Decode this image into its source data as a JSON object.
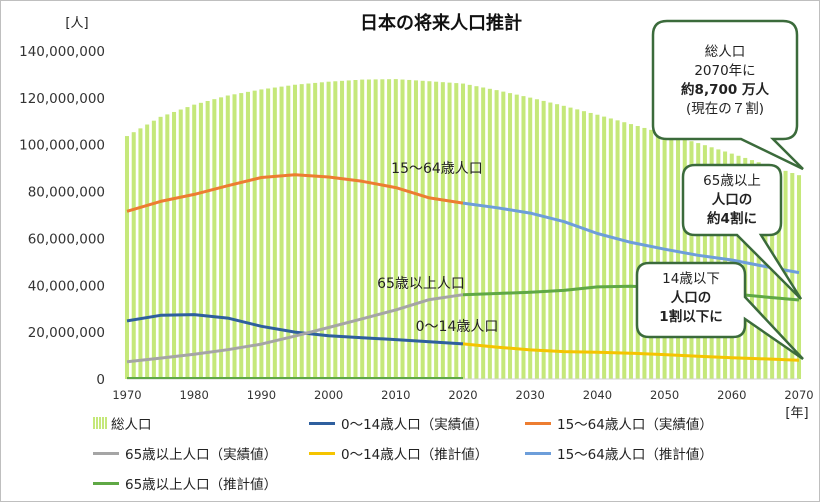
{
  "chart_data": {
    "type": "bar+line",
    "title": "日本の将来人口推計",
    "y_unit": "[人]",
    "x_unit": "[年]",
    "ylim": [
      0,
      140000000
    ],
    "y_ticks": [
      "0",
      "20,000,000",
      "40,000,000",
      "60,000,000",
      "80,000,000",
      "100,000,000",
      "120,000,000",
      "140,000,000"
    ],
    "x_ticks": [
      "1970",
      "1980",
      "1990",
      "2000",
      "2010",
      "2020",
      "2030",
      "2040",
      "2050",
      "2060",
      "2070"
    ],
    "series": [
      {
        "name": "総人口",
        "kind": "bar",
        "color": "#c5e87a",
        "points": [
          [
            1970,
            103700000
          ],
          [
            1975,
            111900000
          ],
          [
            1980,
            117100000
          ],
          [
            1985,
            121000000
          ],
          [
            1990,
            123600000
          ],
          [
            1995,
            125600000
          ],
          [
            2000,
            126900000
          ],
          [
            2005,
            127800000
          ],
          [
            2010,
            128000000
          ],
          [
            2015,
            127100000
          ],
          [
            2020,
            126100000
          ],
          [
            2025,
            123300000
          ],
          [
            2030,
            120100000
          ],
          [
            2035,
            116600000
          ],
          [
            2040,
            112800000
          ],
          [
            2045,
            108800000
          ],
          [
            2050,
            104700000
          ],
          [
            2055,
            100700000
          ],
          [
            2060,
            96200000
          ],
          [
            2065,
            91600000
          ],
          [
            2070,
            87000000
          ]
        ]
      },
      {
        "name": "0～14歳人口（実績値）",
        "kind": "line",
        "color": "#2e5f9e",
        "points": [
          [
            1970,
            24800000
          ],
          [
            1975,
            27200000
          ],
          [
            1980,
            27500000
          ],
          [
            1985,
            26000000
          ],
          [
            1990,
            22500000
          ],
          [
            1995,
            20000000
          ],
          [
            2000,
            18500000
          ],
          [
            2005,
            17600000
          ],
          [
            2010,
            16800000
          ],
          [
            2015,
            15900000
          ],
          [
            2020,
            15000000
          ]
        ]
      },
      {
        "name": "15～64歳人口（実績値）",
        "kind": "line",
        "color": "#ed7d31",
        "points": [
          [
            1970,
            71600000
          ],
          [
            1975,
            75800000
          ],
          [
            1980,
            78800000
          ],
          [
            1985,
            82500000
          ],
          [
            1990,
            86000000
          ],
          [
            1995,
            87200000
          ],
          [
            2000,
            86200000
          ],
          [
            2005,
            84400000
          ],
          [
            2010,
            81700000
          ],
          [
            2015,
            77300000
          ],
          [
            2020,
            75100000
          ]
        ]
      },
      {
        "name": "65歳以上人口（実績値）",
        "kind": "line",
        "color": "#a5a5a5",
        "points": [
          [
            1970,
            7400000
          ],
          [
            1975,
            8900000
          ],
          [
            1980,
            10600000
          ],
          [
            1985,
            12500000
          ],
          [
            1990,
            14900000
          ],
          [
            1995,
            18300000
          ],
          [
            2000,
            22000000
          ],
          [
            2005,
            25700000
          ],
          [
            2010,
            29500000
          ],
          [
            2015,
            33900000
          ],
          [
            2020,
            36000000
          ]
        ]
      },
      {
        "name": "0～14歳人口（推計値）",
        "kind": "line",
        "color": "#f5c400",
        "points": [
          [
            2020,
            15000000
          ],
          [
            2025,
            13600000
          ],
          [
            2030,
            12400000
          ],
          [
            2035,
            11700000
          ],
          [
            2040,
            11400000
          ],
          [
            2045,
            11000000
          ],
          [
            2050,
            10400000
          ],
          [
            2055,
            9700000
          ],
          [
            2060,
            9100000
          ],
          [
            2065,
            8600000
          ],
          [
            2070,
            8000000
          ]
        ]
      },
      {
        "name": "15～64歳人口（推計値）",
        "kind": "line",
        "color": "#6d9eda",
        "points": [
          [
            2020,
            75100000
          ],
          [
            2025,
            73100000
          ],
          [
            2030,
            70800000
          ],
          [
            2035,
            67200000
          ],
          [
            2040,
            62100000
          ],
          [
            2045,
            58300000
          ],
          [
            2050,
            55400000
          ],
          [
            2055,
            52800000
          ],
          [
            2060,
            50800000
          ],
          [
            2065,
            48000000
          ],
          [
            2070,
            45400000
          ]
        ]
      },
      {
        "name": "65歳以上人口（推計値）",
        "kind": "line",
        "color": "#5fa845",
        "points": [
          [
            2020,
            36000000
          ],
          [
            2025,
            36500000
          ],
          [
            2030,
            37000000
          ],
          [
            2035,
            37800000
          ],
          [
            2040,
            39300000
          ],
          [
            2045,
            39600000
          ],
          [
            2050,
            38900000
          ],
          [
            2055,
            37800000
          ],
          [
            2060,
            36400000
          ],
          [
            2065,
            35000000
          ],
          [
            2070,
            33700000
          ]
        ]
      }
    ],
    "annotations": [
      {
        "text": "15～64歳人口"
      },
      {
        "text": "65歳以上人口"
      },
      {
        "text": "0～14歳人口"
      }
    ],
    "callouts": [
      {
        "lines": [
          {
            "t": "総人口",
            "bold": false
          },
          {
            "t": "2070年に",
            "bold": false
          },
          {
            "t": "約8,700 万人",
            "bold": true
          },
          {
            "t": "(現在の７割)",
            "bold": false
          }
        ]
      },
      {
        "lines": [
          {
            "t": "65歳以上",
            "bold": false
          },
          {
            "t": "人口の",
            "bold": true
          },
          {
            "t": "約4割に",
            "bold": true
          }
        ]
      },
      {
        "lines": [
          {
            "t": "14歳以下",
            "bold": false
          },
          {
            "t": "人口の",
            "bold": true
          },
          {
            "t": "1割以下に",
            "bold": true
          }
        ]
      }
    ],
    "legend_placement": "bottom"
  }
}
